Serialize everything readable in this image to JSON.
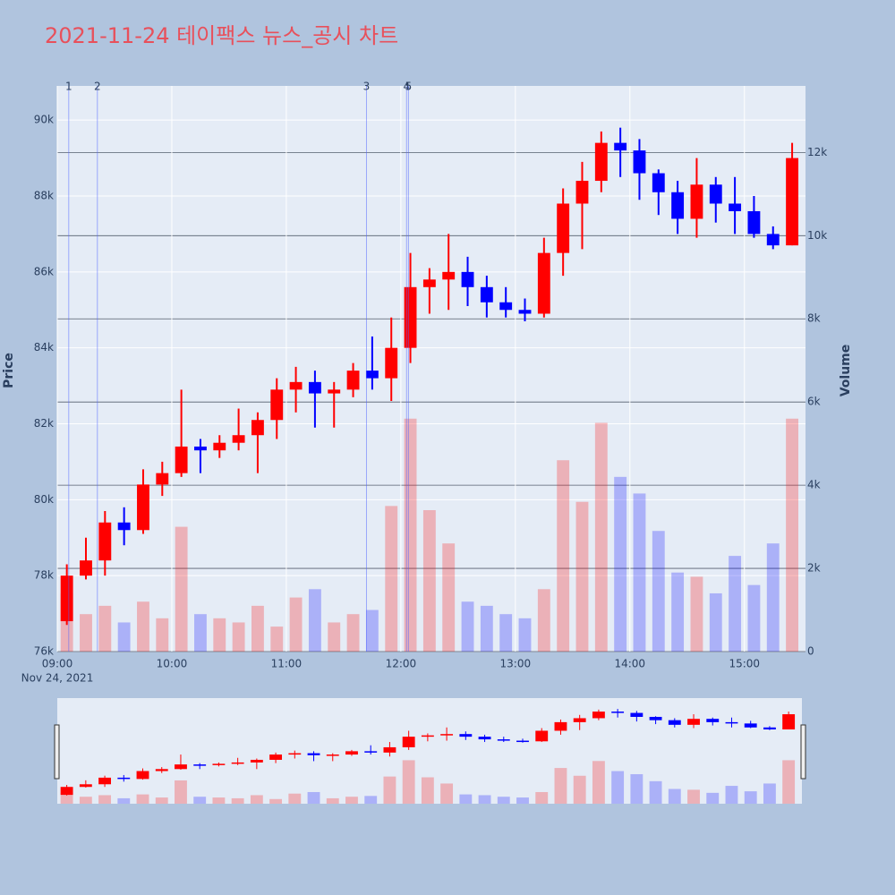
{
  "chart_data": {
    "type": "candlestick",
    "title": "2021-11-24 테이팩스 뉴스_공시 차트",
    "y_label": "Price",
    "y2_label": "Volume",
    "x_date_label": "Nov 24, 2021",
    "x": [
      "09:00",
      "09:10",
      "09:20",
      "09:30",
      "09:40",
      "09:50",
      "10:00",
      "10:10",
      "10:20",
      "10:30",
      "10:40",
      "10:50",
      "11:00",
      "11:10",
      "11:20",
      "11:30",
      "11:40",
      "11:50",
      "12:00",
      "12:10",
      "12:20",
      "12:30",
      "12:40",
      "12:50",
      "13:00",
      "13:10",
      "13:20",
      "13:30",
      "13:40",
      "13:50",
      "14:00",
      "14:10",
      "14:20",
      "14:30",
      "14:40",
      "14:50",
      "15:00",
      "15:10",
      "15:20"
    ],
    "open": [
      76800,
      78000,
      78400,
      79400,
      79200,
      80400,
      80700,
      81400,
      81300,
      81500,
      81700,
      82100,
      82900,
      83100,
      82800,
      82900,
      83400,
      83200,
      84000,
      85600,
      85800,
      86000,
      85600,
      85200,
      85000,
      84900,
      86500,
      87800,
      88400,
      89400,
      89200,
      88600,
      88100,
      87400,
      88300,
      87800,
      87600,
      87000,
      86700
    ],
    "high": [
      78300,
      79000,
      79700,
      79800,
      80800,
      81000,
      82900,
      81600,
      81700,
      82400,
      82300,
      83200,
      83500,
      83400,
      83100,
      83600,
      84300,
      84800,
      86500,
      86100,
      87000,
      86400,
      85900,
      85600,
      85300,
      86900,
      88200,
      88900,
      89700,
      89800,
      89500,
      88700,
      88400,
      89000,
      88500,
      88500,
      88000,
      87200,
      89400
    ],
    "low": [
      76700,
      77900,
      78000,
      78800,
      79100,
      80100,
      80600,
      80700,
      81100,
      81300,
      80700,
      81600,
      82300,
      81900,
      81900,
      82700,
      82900,
      82600,
      83600,
      84900,
      85000,
      85100,
      84800,
      84800,
      84700,
      84800,
      85900,
      86600,
      88100,
      88500,
      87900,
      87500,
      87000,
      86900,
      87300,
      87000,
      86900,
      86600,
      86700
    ],
    "close": [
      78000,
      78400,
      79400,
      79200,
      80400,
      80700,
      81400,
      81300,
      81500,
      81700,
      82100,
      82900,
      83100,
      82800,
      82900,
      83400,
      83200,
      84000,
      85600,
      85800,
      86000,
      85600,
      85200,
      85000,
      84900,
      86500,
      87800,
      88400,
      89400,
      89200,
      88600,
      88100,
      87400,
      88300,
      87800,
      87600,
      87000,
      86700,
      89000
    ],
    "volume": [
      1400,
      900,
      1100,
      700,
      1200,
      800,
      3000,
      900,
      800,
      700,
      1100,
      600,
      1300,
      1500,
      700,
      900,
      1000,
      3500,
      5600,
      3400,
      2600,
      1200,
      1100,
      900,
      800,
      1500,
      4600,
      3600,
      5500,
      4200,
      3800,
      2900,
      1900,
      1800,
      1400,
      2300,
      1600,
      2600,
      5600
    ],
    "up_color": "#ff0000",
    "down_color": "#0000ff",
    "ylim": [
      76000,
      90900
    ],
    "yticks": [
      {
        "value": 76000,
        "label": "76k"
      },
      {
        "value": 78000,
        "label": "78k"
      },
      {
        "value": 80000,
        "label": "80k"
      },
      {
        "value": 82000,
        "label": "82k"
      },
      {
        "value": 84000,
        "label": "84k"
      },
      {
        "value": 86000,
        "label": "86k"
      },
      {
        "value": 88000,
        "label": "88k"
      },
      {
        "value": 90000,
        "label": "90k"
      }
    ],
    "y2lim": [
      0,
      13600
    ],
    "y2ticks": [
      0,
      {
        "value": 2000,
        "label": "2k"
      },
      {
        "value": 4000,
        "label": "4k"
      },
      {
        "value": 6000,
        "label": "6k"
      },
      {
        "value": 8000,
        "label": "8k"
      },
      {
        "value": 10000,
        "label": "10k"
      },
      {
        "value": 12000,
        "label": "12k"
      }
    ],
    "xlim": [
      "09:00",
      "15:32"
    ],
    "xticks": [
      "09:00",
      "10:00",
      "11:00",
      "12:00",
      "13:00",
      "14:00",
      "15:00"
    ],
    "annotations": [
      {
        "x": "09:06",
        "label": "1"
      },
      {
        "x": "09:21",
        "label": "2"
      },
      {
        "x": "11:42",
        "label": "3"
      },
      {
        "x": "12:03",
        "label": "4"
      },
      {
        "x": "12:04",
        "label": "5"
      }
    ],
    "grid": true,
    "rangeslider": true
  }
}
